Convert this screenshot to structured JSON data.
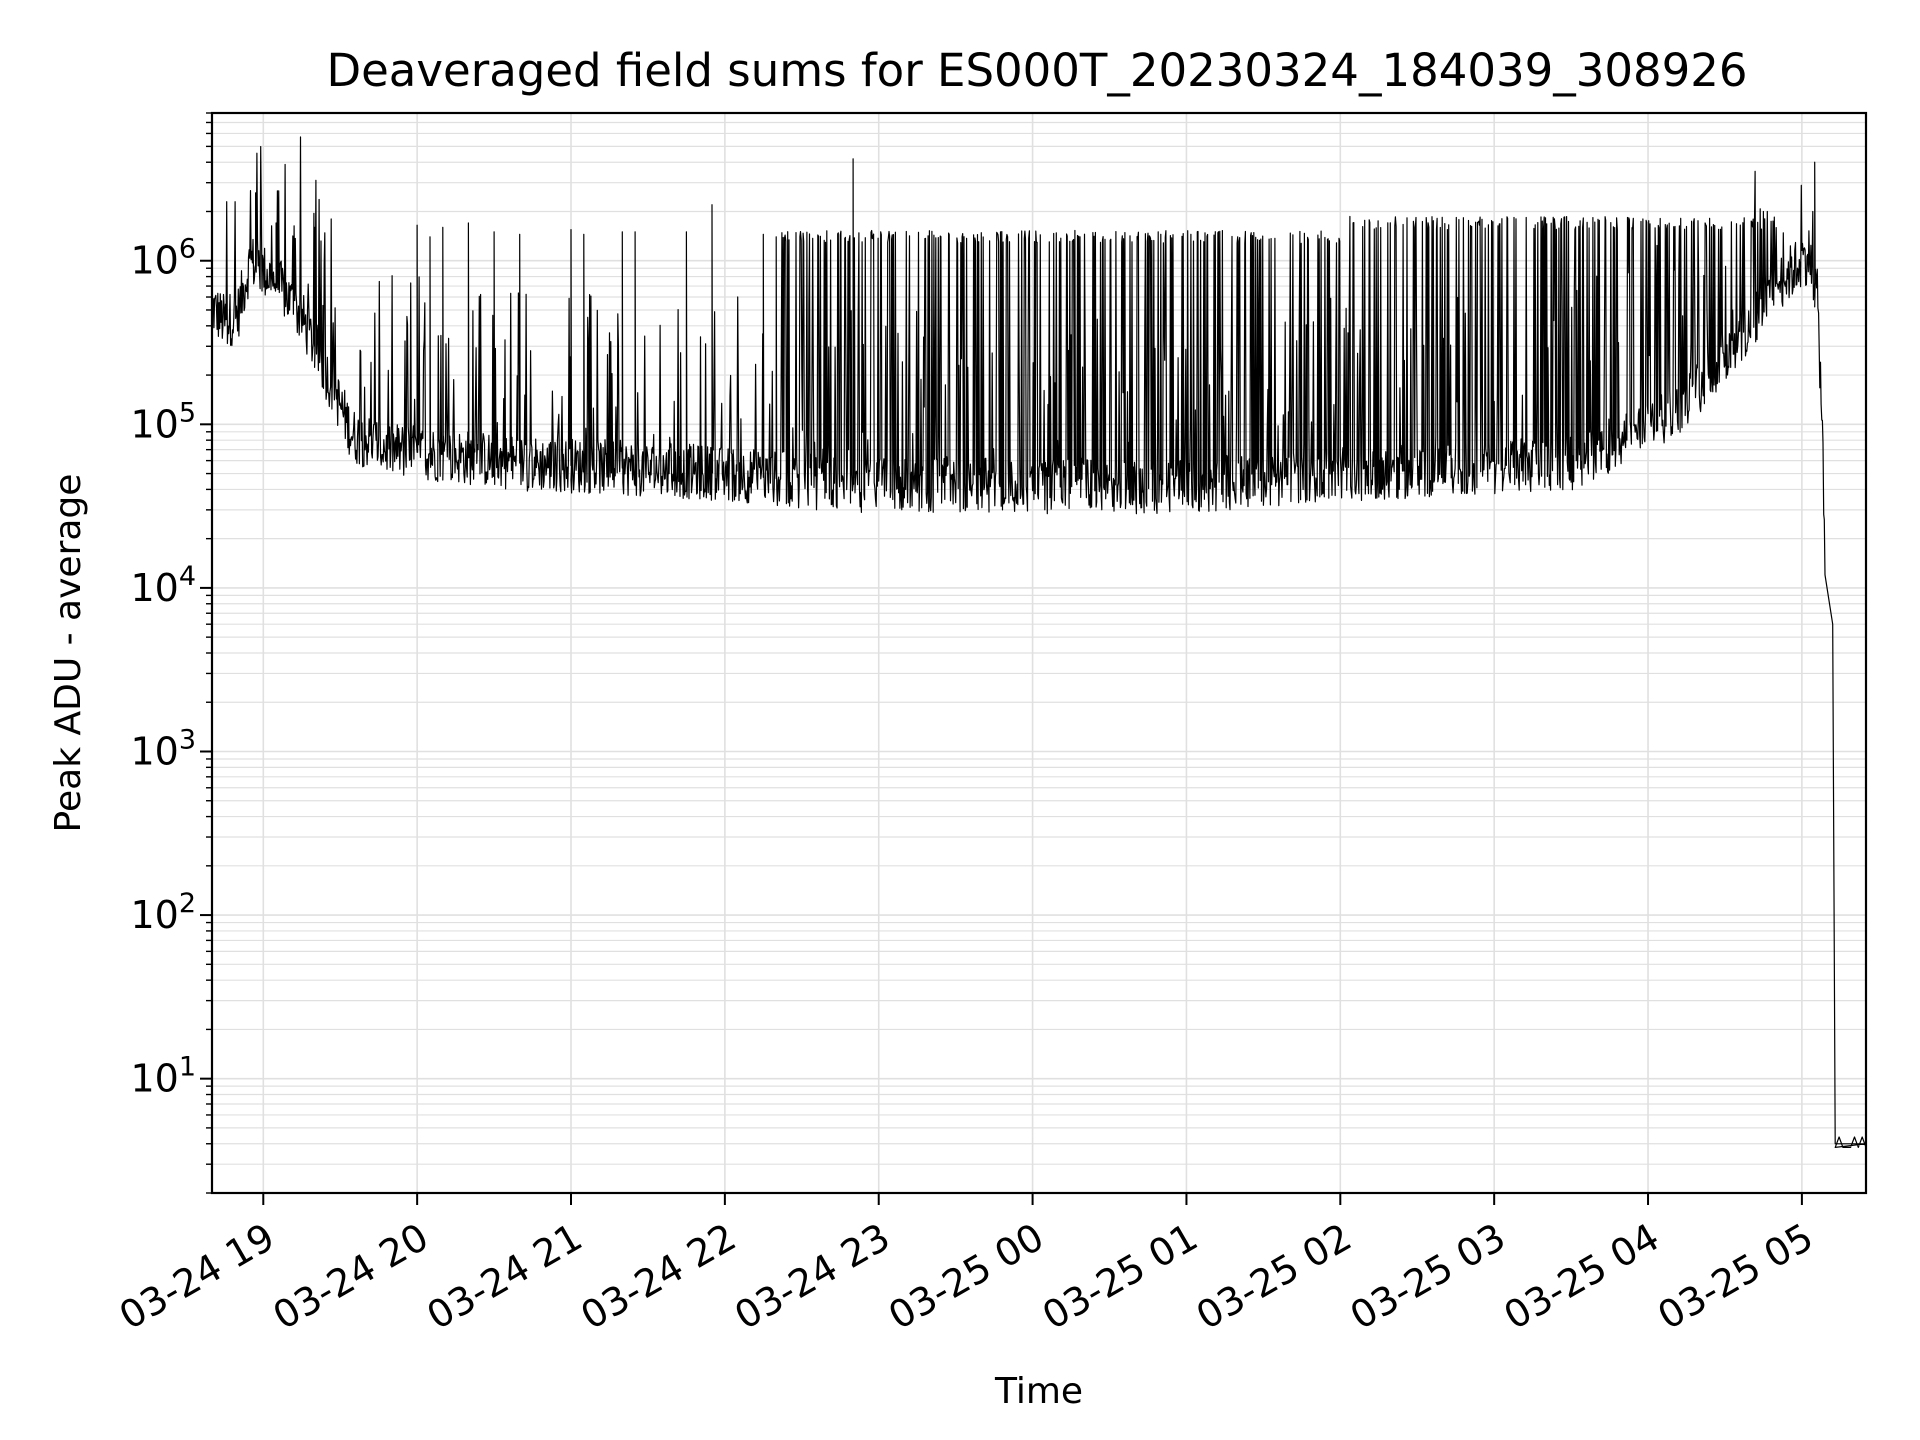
{
  "chart_data": {
    "type": "line",
    "title": "Deaveraged field sums for ES000T_20230324_184039_308926",
    "xlabel": "Time",
    "ylabel": "Peak ADU - average",
    "y_scale": "log",
    "ylim": [
      2,
      8000000
    ],
    "xlim": [
      "03-24 18:40",
      "03-25 05:25"
    ],
    "grid": true,
    "line_color": "#000000",
    "grid_color": "#e0e0e0",
    "x_ticks": [
      {
        "value": "03-24 19:00",
        "label": "03-24 19"
      },
      {
        "value": "03-24 20:00",
        "label": "03-24 20"
      },
      {
        "value": "03-24 21:00",
        "label": "03-24 21"
      },
      {
        "value": "03-24 22:00",
        "label": "03-24 22"
      },
      {
        "value": "03-24 23:00",
        "label": "03-24 23"
      },
      {
        "value": "03-25 00:00",
        "label": "03-25 00"
      },
      {
        "value": "03-25 01:00",
        "label": "03-25 01"
      },
      {
        "value": "03-25 02:00",
        "label": "03-25 02"
      },
      {
        "value": "03-25 03:00",
        "label": "03-25 03"
      },
      {
        "value": "03-25 04:00",
        "label": "03-25 04"
      },
      {
        "value": "03-25 05:00",
        "label": "03-25 05"
      }
    ],
    "y_ticks": [
      {
        "value": 10,
        "base": "10",
        "exp": "1"
      },
      {
        "value": 100,
        "base": "10",
        "exp": "2"
      },
      {
        "value": 1000,
        "base": "10",
        "exp": "3"
      },
      {
        "value": 10000,
        "base": "10",
        "exp": "4"
      },
      {
        "value": 100000,
        "base": "10",
        "exp": "5"
      },
      {
        "value": 1000000,
        "base": "10",
        "exp": "6"
      }
    ],
    "series": [
      {
        "baseline": [
          {
            "x": "03-24 18:40",
            "y": 520000
          },
          {
            "x": "03-24 18:45",
            "y": 420000
          },
          {
            "x": "03-24 18:50",
            "y": 470000
          },
          {
            "x": "03-24 18:55",
            "y": 1000000
          },
          {
            "x": "03-24 19:05",
            "y": 750000
          },
          {
            "x": "03-24 19:15",
            "y": 450000
          },
          {
            "x": "03-24 19:25",
            "y": 200000
          },
          {
            "x": "03-24 19:35",
            "y": 85000
          },
          {
            "x": "03-24 19:50",
            "y": 70000
          },
          {
            "x": "03-24 20:10",
            "y": 65000
          },
          {
            "x": "03-24 20:40",
            "y": 58000
          },
          {
            "x": "03-24 21:10",
            "y": 55000
          },
          {
            "x": "03-24 21:40",
            "y": 52000
          },
          {
            "x": "03-24 22:00",
            "y": 50000
          },
          {
            "x": "03-24 22:30",
            "y": 45000
          },
          {
            "x": "03-24 23:00",
            "y": 42000
          },
          {
            "x": "03-24 23:30",
            "y": 43000
          },
          {
            "x": "03-25 00:00",
            "y": 42000
          },
          {
            "x": "03-25 00:30",
            "y": 42000
          },
          {
            "x": "03-25 01:00",
            "y": 42000
          },
          {
            "x": "03-25 01:30",
            "y": 46000
          },
          {
            "x": "03-25 02:00",
            "y": 50000
          },
          {
            "x": "03-25 02:30",
            "y": 52000
          },
          {
            "x": "03-25 03:00",
            "y": 55000
          },
          {
            "x": "03-25 03:30",
            "y": 58000
          },
          {
            "x": "03-25 03:50",
            "y": 80000
          },
          {
            "x": "03-25 04:10",
            "y": 120000
          },
          {
            "x": "03-25 04:30",
            "y": 250000
          },
          {
            "x": "03-25 04:50",
            "y": 700000
          },
          {
            "x": "03-25 05:03",
            "y": 1100000
          },
          {
            "x": "03-25 05:06",
            "y": 600000
          },
          {
            "x": "03-25 05:08",
            "y": 100000
          },
          {
            "x": "03-25 05:09",
            "y": 12000
          },
          {
            "x": "03-25 05:12",
            "y": 6000
          },
          {
            "x": "03-25 05:13",
            "y": 4
          },
          {
            "x": "03-25 05:25",
            "y": 4
          }
        ],
        "spikes": [
          {
            "x": "03-24 18:57",
            "y": 2600000
          },
          {
            "x": "03-24 19:05",
            "y": 1700000
          },
          {
            "x": "03-24 19:20",
            "y": 1600000
          },
          {
            "x": "03-24 20:00",
            "y": 1650000
          },
          {
            "x": "03-24 20:05",
            "y": 1400000
          },
          {
            "x": "03-24 20:10",
            "y": 1600000
          },
          {
            "x": "03-24 20:20",
            "y": 1700000
          },
          {
            "x": "03-24 20:30",
            "y": 1500000
          },
          {
            "x": "03-24 20:40",
            "y": 1450000
          },
          {
            "x": "03-24 21:00",
            "y": 1550000
          },
          {
            "x": "03-24 21:05",
            "y": 1450000
          },
          {
            "x": "03-24 21:20",
            "y": 1500000
          },
          {
            "x": "03-24 21:25",
            "y": 1500000
          },
          {
            "x": "03-24 21:45",
            "y": 1500000
          },
          {
            "x": "03-24 21:55",
            "y": 2200000
          },
          {
            "x": "03-24 22:15",
            "y": 1450000
          },
          {
            "x": "03-24 22:20",
            "y": 1400000
          },
          {
            "x": "03-24 22:50",
            "y": 4200000
          },
          {
            "x": "03-25 05:05",
            "y": 4000000
          }
        ],
        "dense_spikes": [
          {
            "from": "03-24 22:20",
            "to": "03-25 02:00",
            "y": 1400000
          },
          {
            "from": "03-25 02:00",
            "to": "03-25 04:50",
            "y": 1700000
          }
        ]
      }
    ]
  }
}
